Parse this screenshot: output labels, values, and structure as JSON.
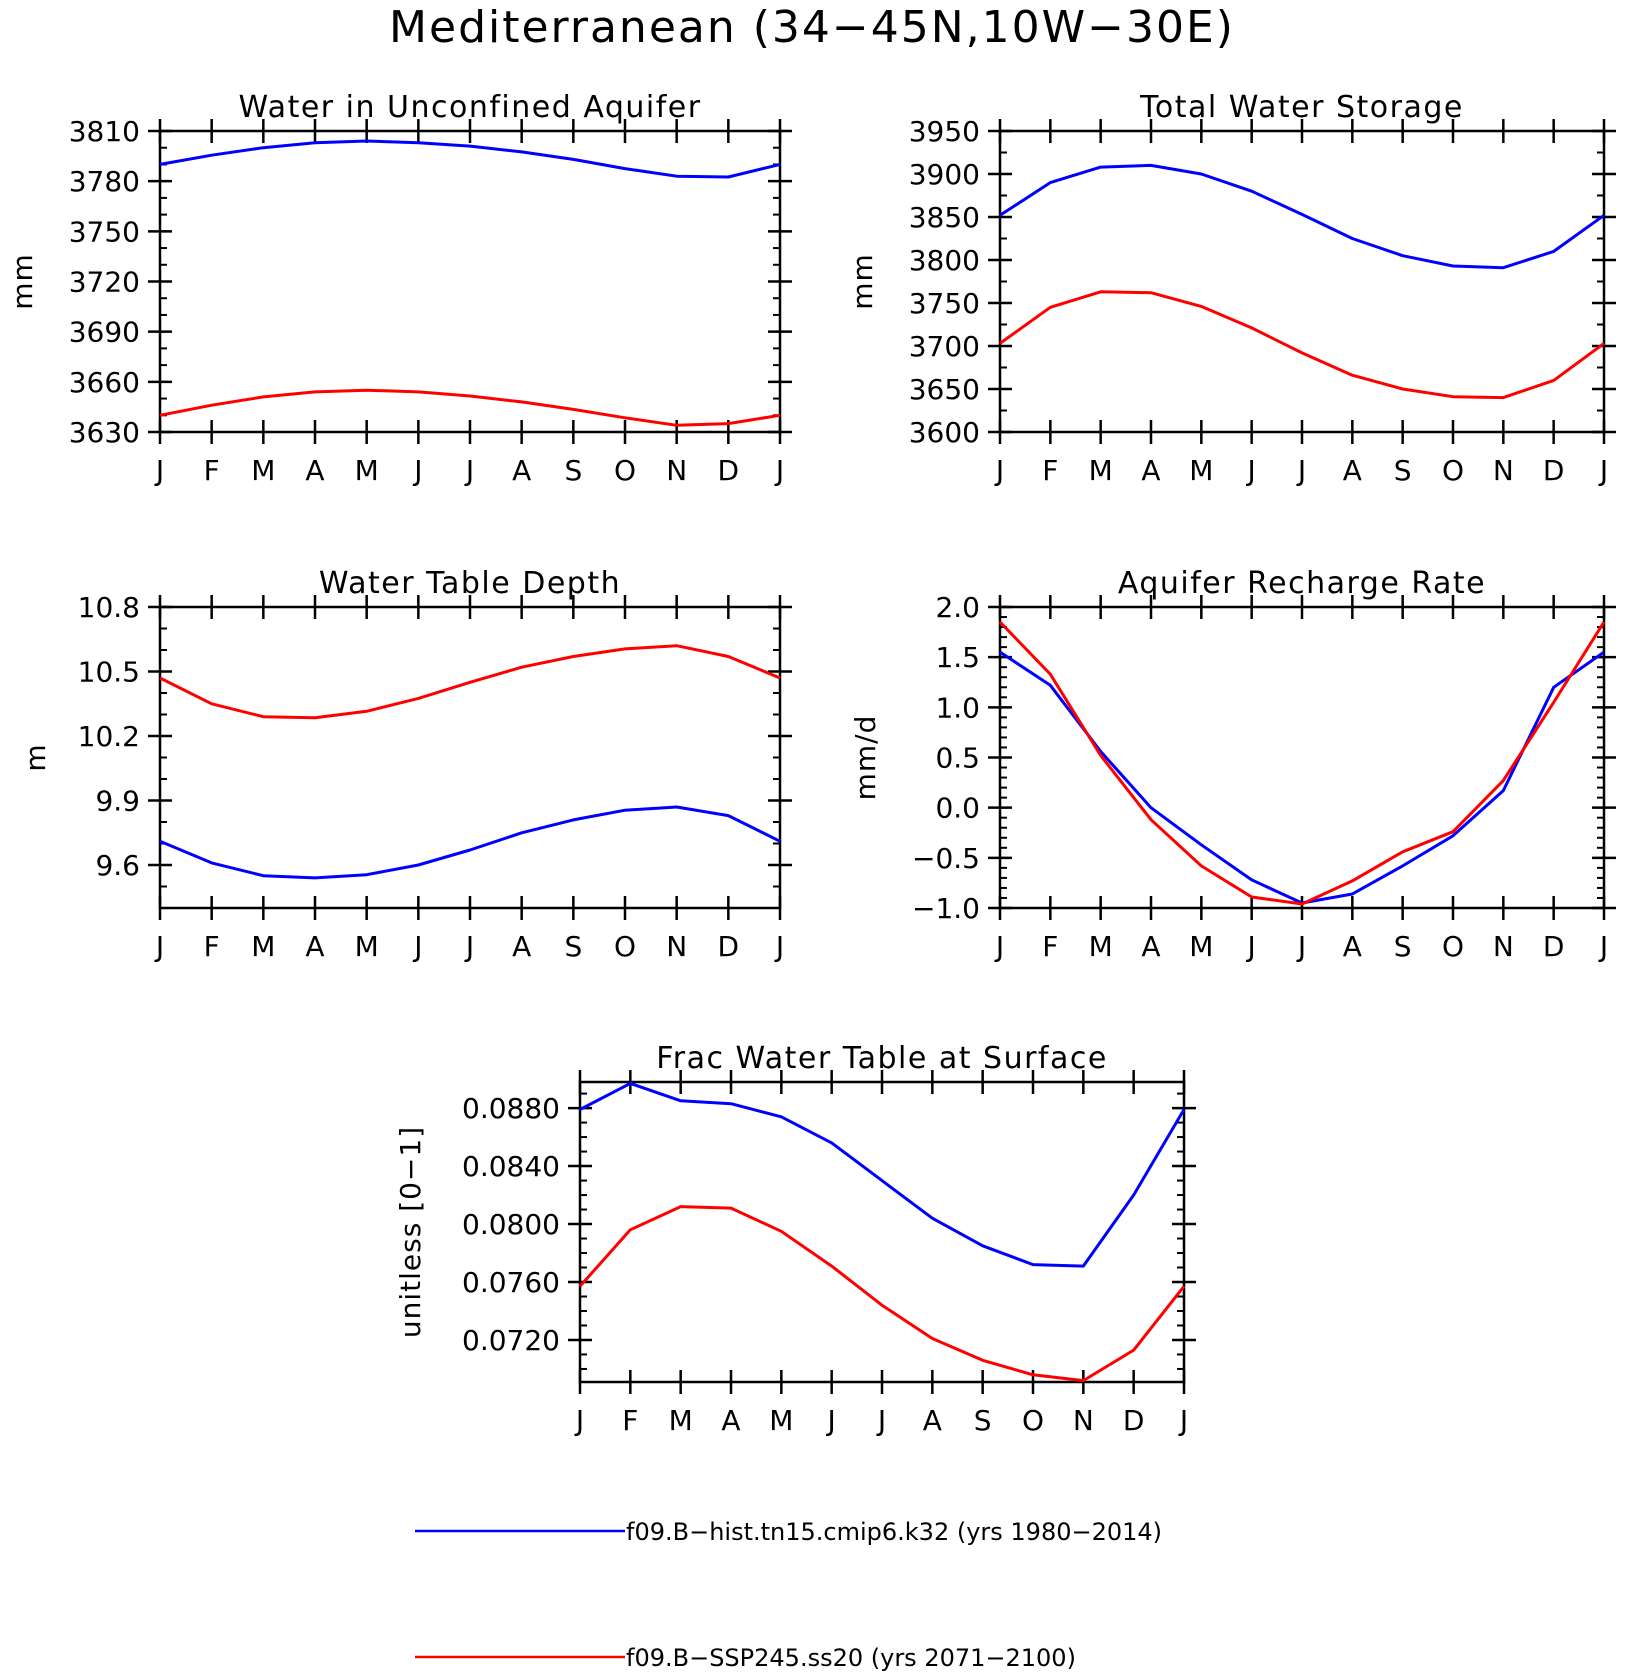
{
  "figure": {
    "title": "Mediterranean (34−45N,10W−30E)"
  },
  "legend": [
    {
      "label": "f09.B−hist.tn15.cmip6.k32 (yrs 1980−2014)",
      "color": "#0000ff"
    },
    {
      "label": "f09.B−SSP245.ss20 (yrs 2071−2100)",
      "color": "#ff0000"
    }
  ],
  "chart_data": [
    {
      "type": "line",
      "title": "Water in Unconfined Aquifer",
      "ylabel": "mm",
      "xlabel": "",
      "categories": [
        "J",
        "F",
        "M",
        "A",
        "M",
        "J",
        "J",
        "A",
        "S",
        "O",
        "N",
        "D",
        "J"
      ],
      "ylim": [
        3630,
        3810
      ],
      "yticks": [
        "3810",
        "3780",
        "3750",
        "3720",
        "3690",
        "3660",
        "3630"
      ],
      "yminor": 10,
      "series": [
        {
          "color": "#0000ff",
          "values": [
            3790,
            3795.5,
            3800,
            3803,
            3804,
            3803,
            3801,
            3797.5,
            3793,
            3787.5,
            3783,
            3782.5,
            3790
          ]
        },
        {
          "color": "#ff0000",
          "values": [
            3640,
            3646,
            3651,
            3654,
            3655,
            3654,
            3651.5,
            3648,
            3643.5,
            3638.5,
            3634,
            3635,
            3640
          ]
        }
      ]
    },
    {
      "type": "line",
      "title": "Total Water Storage",
      "ylabel": "mm",
      "xlabel": "",
      "categories": [
        "J",
        "F",
        "M",
        "A",
        "M",
        "J",
        "J",
        "A",
        "S",
        "O",
        "N",
        "D",
        "J"
      ],
      "ylim": [
        3600,
        3950
      ],
      "yticks": [
        "3950",
        "3900",
        "3850",
        "3800",
        "3750",
        "3700",
        "3650",
        "3600"
      ],
      "yminor": 25,
      "series": [
        {
          "color": "#0000ff",
          "values": [
            3852,
            3890,
            3908,
            3910,
            3900,
            3880,
            3853,
            3825,
            3805,
            3793,
            3791,
            3810,
            3852
          ]
        },
        {
          "color": "#ff0000",
          "values": [
            3703,
            3745,
            3763,
            3762,
            3746,
            3721,
            3692,
            3666,
            3650,
            3641,
            3640,
            3660,
            3703
          ]
        }
      ]
    },
    {
      "type": "line",
      "title": "Water Table Depth",
      "ylabel": "m",
      "xlabel": "",
      "categories": [
        "J",
        "F",
        "M",
        "A",
        "M",
        "J",
        "J",
        "A",
        "S",
        "O",
        "N",
        "D",
        "J"
      ],
      "ylim": [
        9.4,
        10.8
      ],
      "yticks": [
        "10.8",
        "10.5",
        "10.2",
        "9.9",
        "9.6"
      ],
      "yminor": 0.1,
      "series": [
        {
          "color": "#0000ff",
          "values": [
            9.71,
            9.61,
            9.55,
            9.54,
            9.555,
            9.6,
            9.67,
            9.75,
            9.81,
            9.855,
            9.87,
            9.83,
            9.71
          ]
        },
        {
          "color": "#ff0000",
          "values": [
            10.47,
            10.35,
            10.29,
            10.285,
            10.315,
            10.375,
            10.45,
            10.52,
            10.57,
            10.605,
            10.62,
            10.57,
            10.47
          ]
        }
      ]
    },
    {
      "type": "line",
      "title": "Aquifer Recharge Rate",
      "ylabel": "mm/d",
      "xlabel": "",
      "categories": [
        "J",
        "F",
        "M",
        "A",
        "M",
        "J",
        "J",
        "A",
        "S",
        "O",
        "N",
        "D",
        "J"
      ],
      "ylim": [
        -1.0,
        2.0
      ],
      "yticks": [
        "2.0",
        "1.5",
        "1.0",
        "0.5",
        "0.0",
        "−0.5",
        "−1.0"
      ],
      "yminor": 0.1,
      "series": [
        {
          "color": "#0000ff",
          "values": [
            1.55,
            1.22,
            0.56,
            0.0,
            -0.37,
            -0.72,
            -0.95,
            -0.86,
            -0.58,
            -0.28,
            0.17,
            1.2,
            1.55
          ]
        },
        {
          "color": "#ff0000",
          "values": [
            1.85,
            1.33,
            0.52,
            -0.12,
            -0.58,
            -0.89,
            -0.96,
            -0.73,
            -0.44,
            -0.24,
            0.27,
            1.05,
            1.85
          ]
        }
      ]
    },
    {
      "type": "line",
      "title": "Frac Water Table at Surface",
      "ylabel": "unitless [0−1]",
      "xlabel": "",
      "categories": [
        "J",
        "F",
        "M",
        "A",
        "M",
        "J",
        "J",
        "A",
        "S",
        "O",
        "N",
        "D",
        "J"
      ],
      "ylim": [
        0.0691,
        0.0898
      ],
      "yticks": [
        "0.0880",
        "0.0840",
        "0.0800",
        "0.0760",
        "0.0720"
      ],
      "yminor": 0.001,
      "series": [
        {
          "color": "#0000ff",
          "values": [
            0.0879,
            0.0897,
            0.0885,
            0.0883,
            0.0874,
            0.0856,
            0.083,
            0.0804,
            0.0785,
            0.0772,
            0.0771,
            0.082,
            0.0879
          ]
        },
        {
          "color": "#ff0000",
          "values": [
            0.0757,
            0.0796,
            0.0812,
            0.0811,
            0.0795,
            0.0771,
            0.0744,
            0.0721,
            0.0706,
            0.0696,
            0.0692,
            0.0713,
            0.0757
          ]
        }
      ]
    }
  ]
}
